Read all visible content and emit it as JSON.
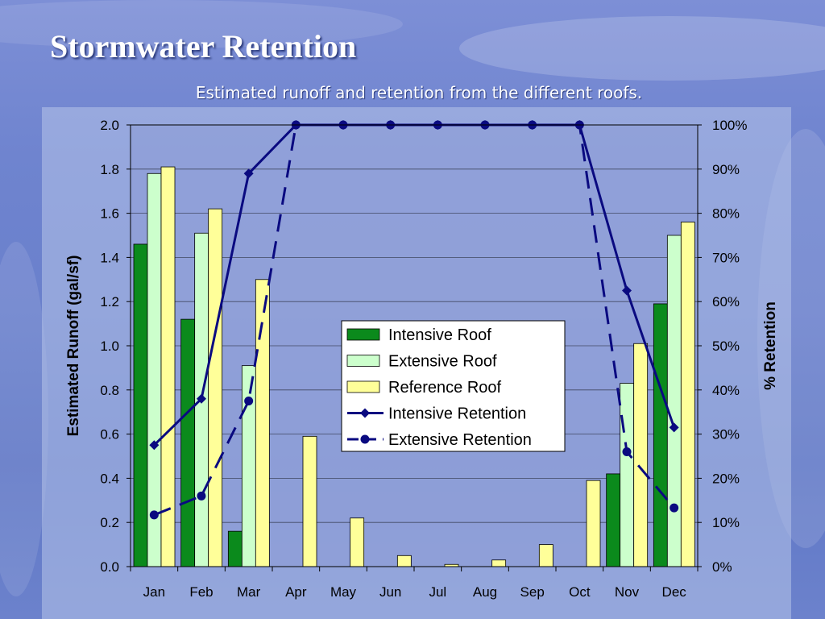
{
  "slide": {
    "title": "Stormwater Retention",
    "subtitle": "Estimated runoff and retention from the different roofs."
  },
  "chart_data": {
    "type": "bar",
    "categories": [
      "Jan",
      "Feb",
      "Mar",
      "Apr",
      "May",
      "Jun",
      "Jul",
      "Aug",
      "Sep",
      "Oct",
      "Nov",
      "Dec"
    ],
    "ylabel": "Estimated Runoff (gal/sf)",
    "y2label": "% Retention",
    "ylim": [
      0,
      2.0
    ],
    "y_ticks": [
      "0.0",
      "0.2",
      "0.4",
      "0.6",
      "0.8",
      "1.0",
      "1.2",
      "1.4",
      "1.6",
      "1.8",
      "2.0"
    ],
    "y2lim": [
      0,
      1.0
    ],
    "y2_ticks": [
      "0%",
      "10%",
      "20%",
      "30%",
      "40%",
      "50%",
      "60%",
      "70%",
      "80%",
      "90%",
      "100%"
    ],
    "grid": true,
    "legend_position": "center-right",
    "series": [
      {
        "name": "Intensive Roof",
        "kind": "bar",
        "axis": "left",
        "color": "#0b8a1c",
        "values": [
          1.46,
          1.12,
          0.16,
          0,
          0,
          0,
          0,
          0,
          0,
          0,
          0.42,
          1.19
        ]
      },
      {
        "name": "Extensive Roof",
        "kind": "bar",
        "axis": "left",
        "color": "#ccffcc",
        "values": [
          1.78,
          1.51,
          0.91,
          0,
          0,
          0,
          0,
          0,
          0,
          0,
          0.83,
          1.5
        ]
      },
      {
        "name": "Reference Roof",
        "kind": "bar",
        "axis": "left",
        "color": "#ffff99",
        "values": [
          1.81,
          1.62,
          1.3,
          0.59,
          0.22,
          0.05,
          0.01,
          0.03,
          0.1,
          0.39,
          1.01,
          1.56
        ]
      },
      {
        "name": "Intensive Retention",
        "kind": "line",
        "axis": "right",
        "color": "#0a0a80",
        "style": "solid",
        "marker": "diamond",
        "values": [
          0.275,
          0.38,
          0.89,
          1.0,
          1.0,
          1.0,
          1.0,
          1.0,
          1.0,
          1.0,
          0.625,
          0.315
        ]
      },
      {
        "name": "Extensive Retention",
        "kind": "line",
        "axis": "right",
        "color": "#0a0a80",
        "style": "dashed",
        "marker": "circle",
        "values": [
          0.117,
          0.16,
          0.375,
          1.0,
          1.0,
          1.0,
          1.0,
          1.0,
          1.0,
          1.0,
          0.26,
          0.133
        ]
      }
    ]
  }
}
